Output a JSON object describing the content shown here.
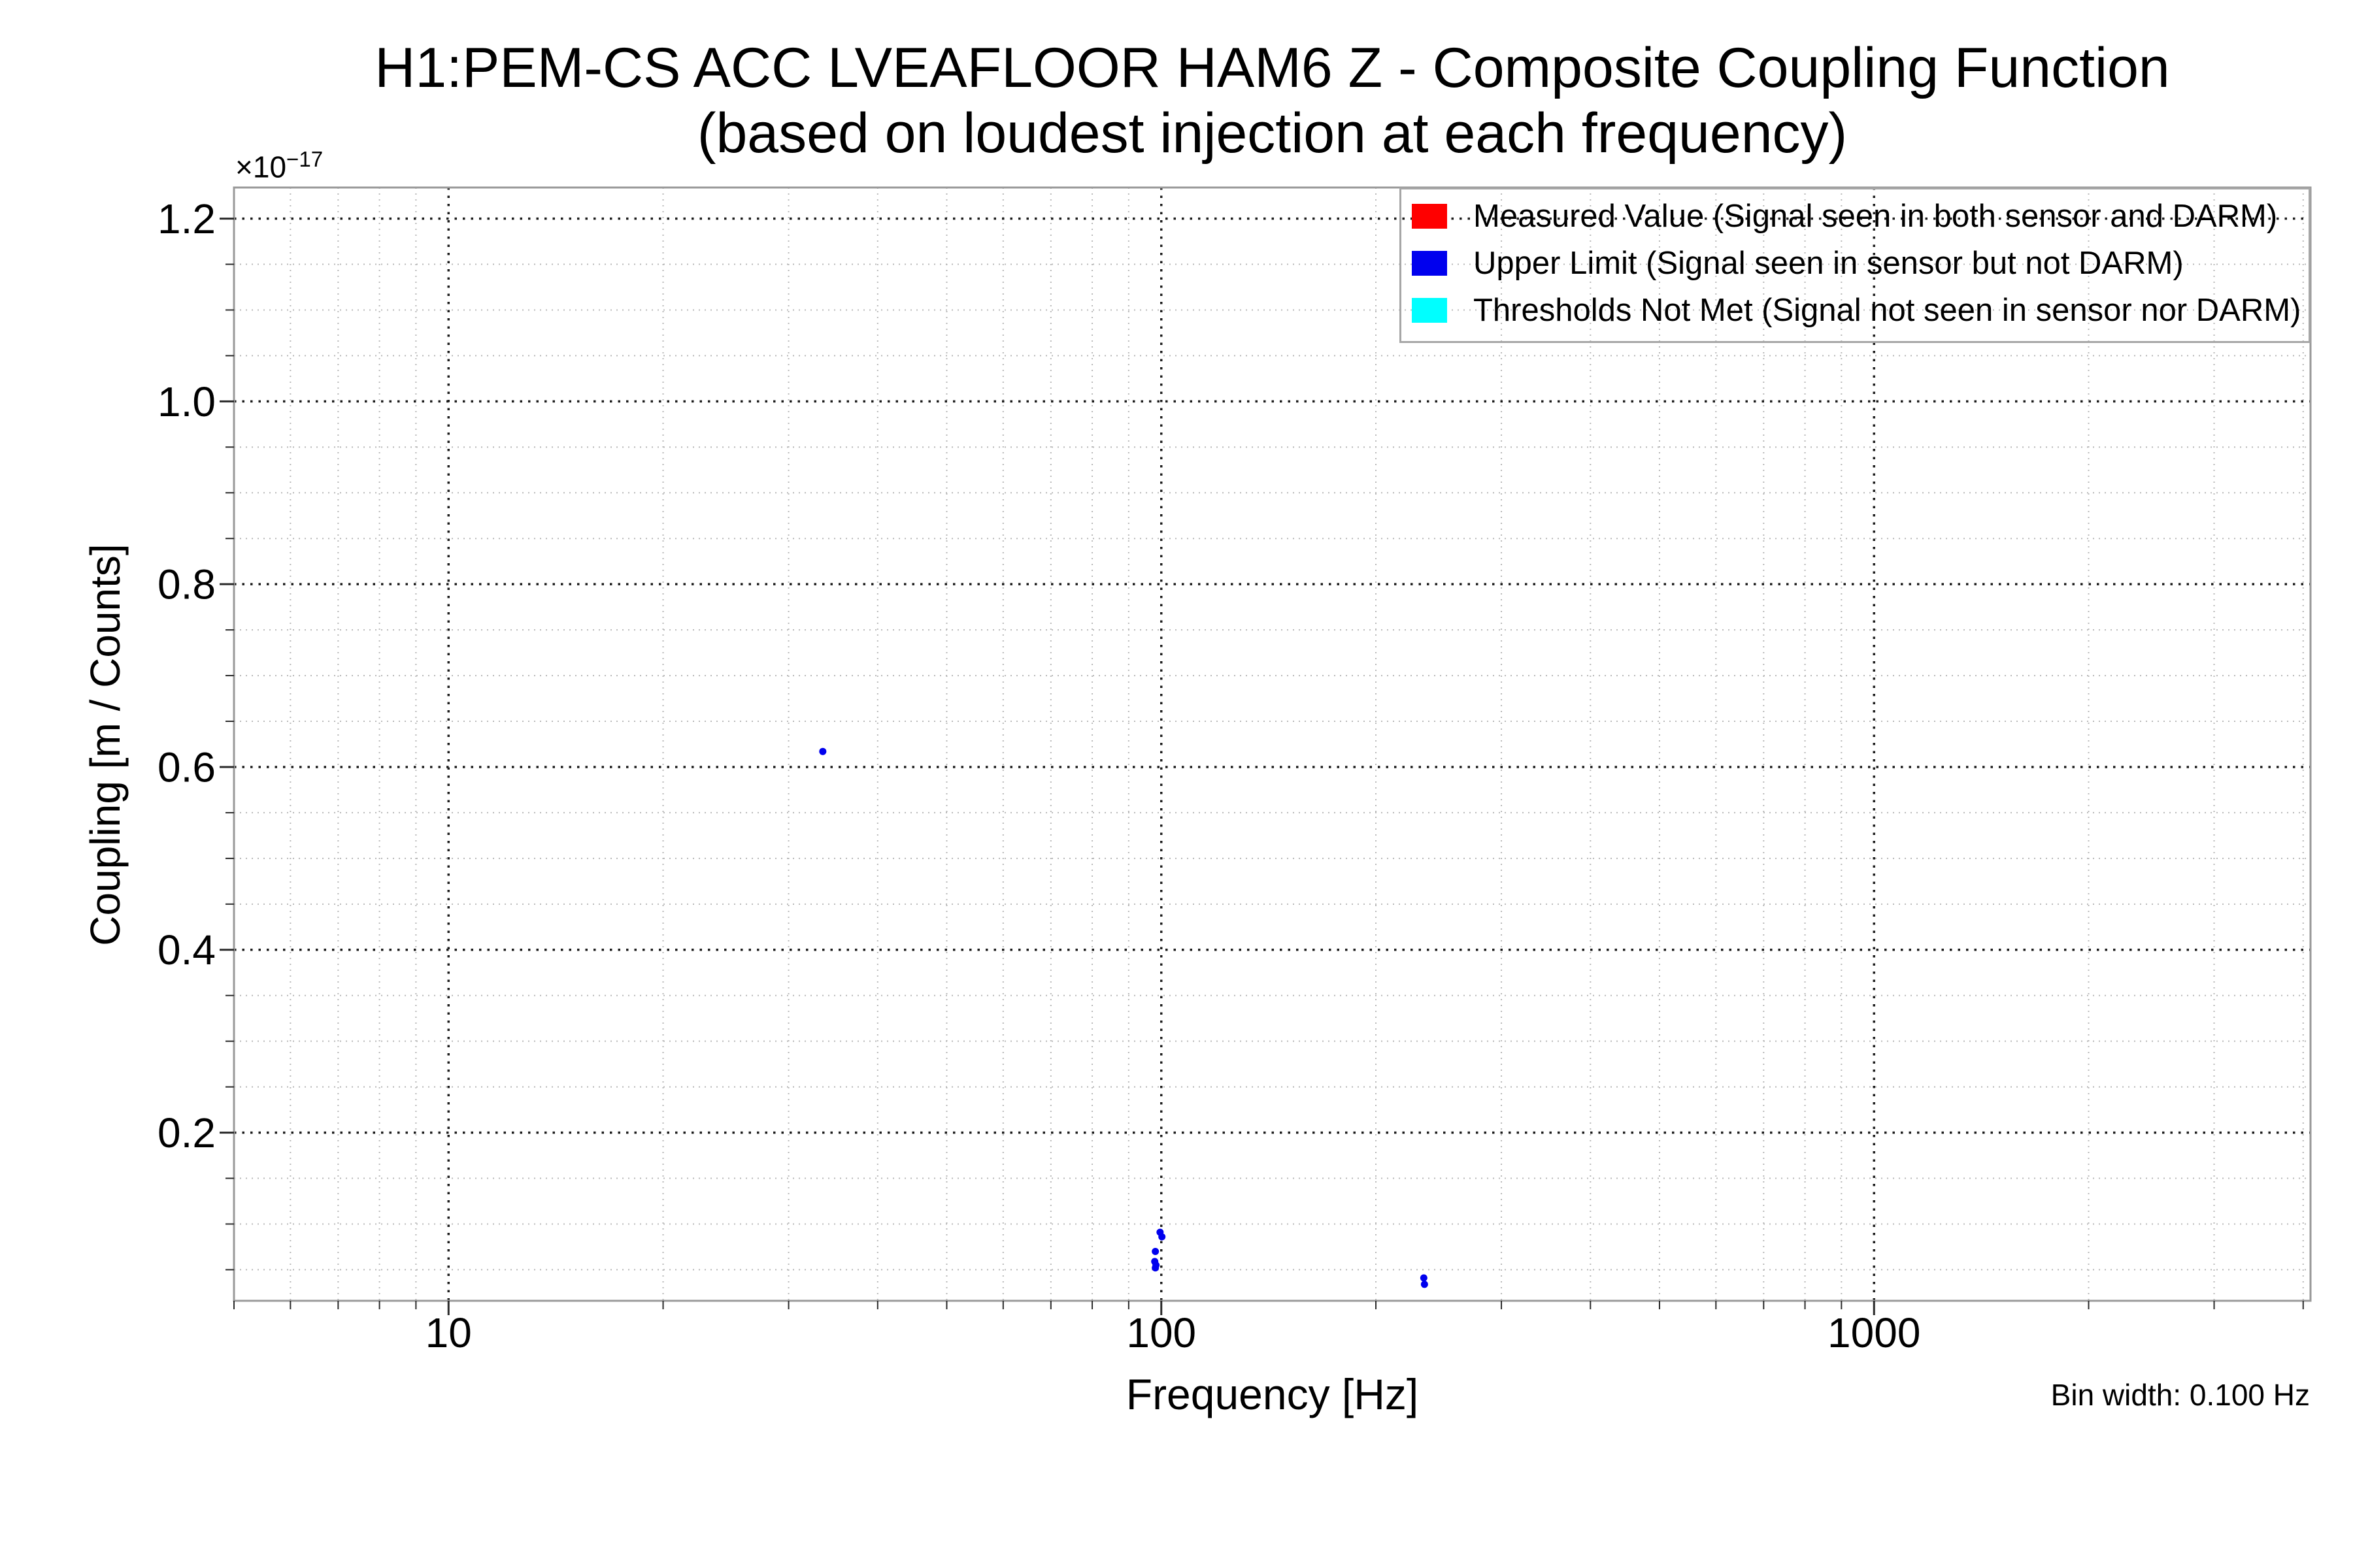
{
  "figure": {
    "title_line1": "H1:PEM-CS ACC LVEAFLOOR HAM6 Z - Composite Coupling Function",
    "title_line2": "(based on loudest injection at each frequency)"
  },
  "chart_data": {
    "type": "scatter",
    "title": "H1:PEM-CS ACC LVEAFLOOR HAM6 Z - Composite Coupling Function",
    "subtitle": "(based on loudest injection at each frequency)",
    "xlabel": "Frequency [Hz]",
    "ylabel": "Coupling [m / Counts]",
    "y_offset_text": {
      "base": "×10",
      "exp": "−17"
    },
    "x_scale": "log",
    "y_scale": "linear",
    "xlim": [
      5,
      4096
    ],
    "ylim_e17": [
      0.016,
      1.234
    ],
    "y_units": "1e-17 m / Counts",
    "x_major_ticks": [
      {
        "value": 10,
        "label": "10"
      },
      {
        "value": 100,
        "label": "100"
      },
      {
        "value": 1000,
        "label": "1000"
      }
    ],
    "y_major_ticks": [
      {
        "value": 0.2,
        "label": "0.2"
      },
      {
        "value": 0.4,
        "label": "0.4"
      },
      {
        "value": 0.6,
        "label": "0.6"
      },
      {
        "value": 0.8,
        "label": "0.8"
      },
      {
        "value": 1.0,
        "label": "1.0"
      },
      {
        "value": 1.2,
        "label": "1.2"
      }
    ],
    "y_minor_step": 0.05,
    "grid": {
      "major_color": "#1c1c1c",
      "minor_color": "#b8b8b8",
      "style": "dotted",
      "which": "both"
    },
    "spine_color": "#9a9a9a",
    "tick_color": "#2a2a2a",
    "legend_position": "upper right",
    "annotation": "Bin width: 0.100 Hz",
    "series": [
      {
        "name": "measured",
        "label": "Measured Value (Signal seen in both sensor and DARM)",
        "color": "#ff0000",
        "points_hz_e17": []
      },
      {
        "name": "upper_limit",
        "label": "Upper Limit (Signal seen in sensor but not DARM)",
        "color": "#0000ee",
        "points_hz_e17": [
          [
            33.5,
            0.617
          ],
          [
            97.9,
            0.059
          ],
          [
            98.1,
            0.052
          ],
          [
            98.1,
            0.07
          ],
          [
            98.3,
            0.055
          ],
          [
            99.6,
            0.091
          ],
          [
            100.2,
            0.086
          ],
          [
            233.5,
            0.041
          ],
          [
            234.0,
            0.034
          ]
        ]
      },
      {
        "name": "thresholds_not_met",
        "label": "Thresholds Not Met (Signal not seen in sensor nor DARM)",
        "color": "#00ffff",
        "points_hz_e17": []
      }
    ]
  }
}
